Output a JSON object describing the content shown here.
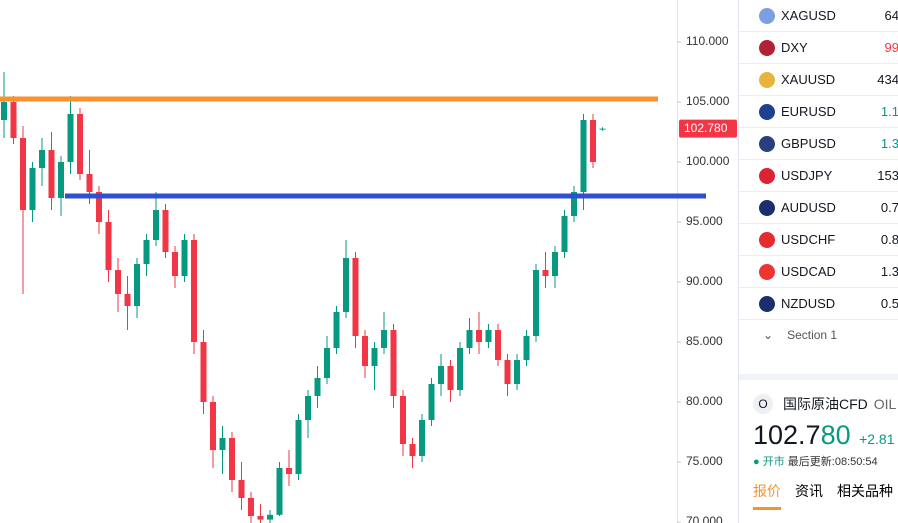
{
  "chart_data": {
    "type": "candlestick",
    "up_color": "#089981",
    "down_color": "#f23645",
    "ylim": [
      69.917,
      113.5
    ],
    "yticks": [
      {
        "value": 70,
        "label": "70.000"
      },
      {
        "value": 75,
        "label": "75.000"
      },
      {
        "value": 80,
        "label": "80.000"
      },
      {
        "value": 85,
        "label": "85.000"
      },
      {
        "value": 90,
        "label": "90.000"
      },
      {
        "value": 95,
        "label": "95.000"
      },
      {
        "value": 100,
        "label": "100.000"
      },
      {
        "value": 105,
        "label": "105.000"
      },
      {
        "value": 110,
        "label": "110.000"
      }
    ],
    "hlines": [
      {
        "value": 105.25,
        "color": "#f7922f"
      },
      {
        "value": 97.17,
        "color": "#2d4fd0"
      }
    ],
    "last_price": {
      "value": 102.78,
      "label": "102.780"
    },
    "candles": [
      [
        103.5,
        107.5,
        102,
        105
      ],
      [
        105,
        105.5,
        101.5,
        102
      ],
      [
        102,
        103,
        89,
        96
      ],
      [
        96,
        100,
        95,
        99.5
      ],
      [
        99.5,
        102,
        98,
        101
      ],
      [
        101,
        102.5,
        96,
        97
      ],
      [
        97,
        100.5,
        95.5,
        100
      ],
      [
        100,
        105.5,
        99,
        104
      ],
      [
        104,
        104.5,
        98.5,
        99
      ],
      [
        99,
        101,
        96.5,
        97.5
      ],
      [
        97.5,
        98,
        94,
        95
      ],
      [
        95,
        96,
        90,
        91
      ],
      [
        91,
        92,
        87.5,
        89
      ],
      [
        89,
        90.5,
        86,
        88
      ],
      [
        88,
        92,
        87,
        91.5
      ],
      [
        91.5,
        94,
        90.5,
        93.5
      ],
      [
        93.5,
        97.5,
        93,
        96
      ],
      [
        96,
        96.5,
        92,
        92.5
      ],
      [
        92.5,
        93,
        89.5,
        90.5
      ],
      [
        90.5,
        94,
        90,
        93.5
      ],
      [
        93.5,
        94,
        84,
        85
      ],
      [
        85,
        86,
        79,
        80
      ],
      [
        80,
        80.5,
        74.5,
        76
      ],
      [
        76,
        78,
        74,
        77
      ],
      [
        77,
        77.5,
        72.5,
        73.5
      ],
      [
        73.5,
        75,
        71,
        72
      ],
      [
        72,
        72.5,
        69.5,
        70.5
      ],
      [
        70.5,
        71.5,
        69.8,
        70.2
      ],
      [
        70.2,
        71,
        69.9,
        70.6
      ],
      [
        70.6,
        75,
        70.5,
        74.5
      ],
      [
        74.5,
        76,
        73,
        74
      ],
      [
        74,
        79,
        73.5,
        78.5
      ],
      [
        78.5,
        81,
        77,
        80.5
      ],
      [
        80.5,
        83,
        79.5,
        82
      ],
      [
        82,
        85.5,
        81.5,
        84.5
      ],
      [
        84.5,
        88,
        84,
        87.5
      ],
      [
        87.5,
        93.5,
        87,
        92
      ],
      [
        92,
        92.5,
        84.5,
        85.5
      ],
      [
        85.5,
        86,
        82,
        83
      ],
      [
        83,
        85,
        81,
        84.5
      ],
      [
        84.5,
        87.5,
        84,
        86
      ],
      [
        86,
        86.5,
        79.5,
        80.5
      ],
      [
        80.5,
        81,
        75.5,
        76.5
      ],
      [
        76.5,
        77,
        74.5,
        75.5
      ],
      [
        75.5,
        79,
        75,
        78.5
      ],
      [
        78.5,
        82,
        78,
        81.5
      ],
      [
        81.5,
        84,
        80.5,
        83
      ],
      [
        83,
        83.5,
        80,
        81
      ],
      [
        81,
        85,
        80.5,
        84.5
      ],
      [
        84.5,
        87,
        84,
        86
      ],
      [
        86,
        87.5,
        84,
        85
      ],
      [
        85,
        86.5,
        84.5,
        86
      ],
      [
        86,
        86.5,
        83,
        83.5
      ],
      [
        83.5,
        84,
        80.5,
        81.5
      ],
      [
        81.5,
        84,
        81,
        83.5
      ],
      [
        83.5,
        86,
        83,
        85.5
      ],
      [
        85.5,
        91.5,
        85,
        91
      ],
      [
        91,
        92.5,
        89.5,
        90.5
      ],
      [
        90.5,
        93,
        89.5,
        92.5
      ],
      [
        92.5,
        96,
        92,
        95.5
      ],
      [
        95.5,
        98,
        95,
        97.5
      ],
      [
        97.5,
        104,
        96,
        103.5
      ],
      [
        103.5,
        104,
        99.5,
        100
      ],
      [
        102.7,
        102.9,
        102.6,
        102.78
      ]
    ]
  },
  "watchlist": [
    {
      "symbol": "XAGUSD",
      "value": "64",
      "flag": "#7b9fe0"
    },
    {
      "symbol": "DXY",
      "value": "99",
      "flag": "#b22234",
      "tone": "red"
    },
    {
      "symbol": "XAUUSD",
      "value": "434",
      "flag": "#e8b33a"
    },
    {
      "symbol": "EURUSD",
      "value": "1.1",
      "flag": "#1f3f8f",
      "tone": "green"
    },
    {
      "symbol": "GBPUSD",
      "value": "1.3",
      "flag": "#2a3f7e",
      "tone": "green"
    },
    {
      "symbol": "USDJPY",
      "value": "153",
      "flag": "#d23"
    },
    {
      "symbol": "AUDUSD",
      "value": "0.7",
      "flag": "#1b2f6e"
    },
    {
      "symbol": "USDCHF",
      "value": "0.8",
      "flag": "#e52b2b"
    },
    {
      "symbol": "USDCAD",
      "value": "1.3",
      "flag": "#e33"
    },
    {
      "symbol": "NZDUSD",
      "value": "0.5",
      "flag": "#1b2f6e"
    }
  ],
  "section": "Section 1",
  "quote": {
    "icon": "O",
    "name": "国际原油CFD",
    "code": "OIL",
    "price_main": "102.7",
    "price_tail": "80",
    "change": "+2.81",
    "status": "开市",
    "updated": "最后更新:08:50:54",
    "tabs": [
      "报价",
      "资讯",
      "相关品种"
    ]
  }
}
